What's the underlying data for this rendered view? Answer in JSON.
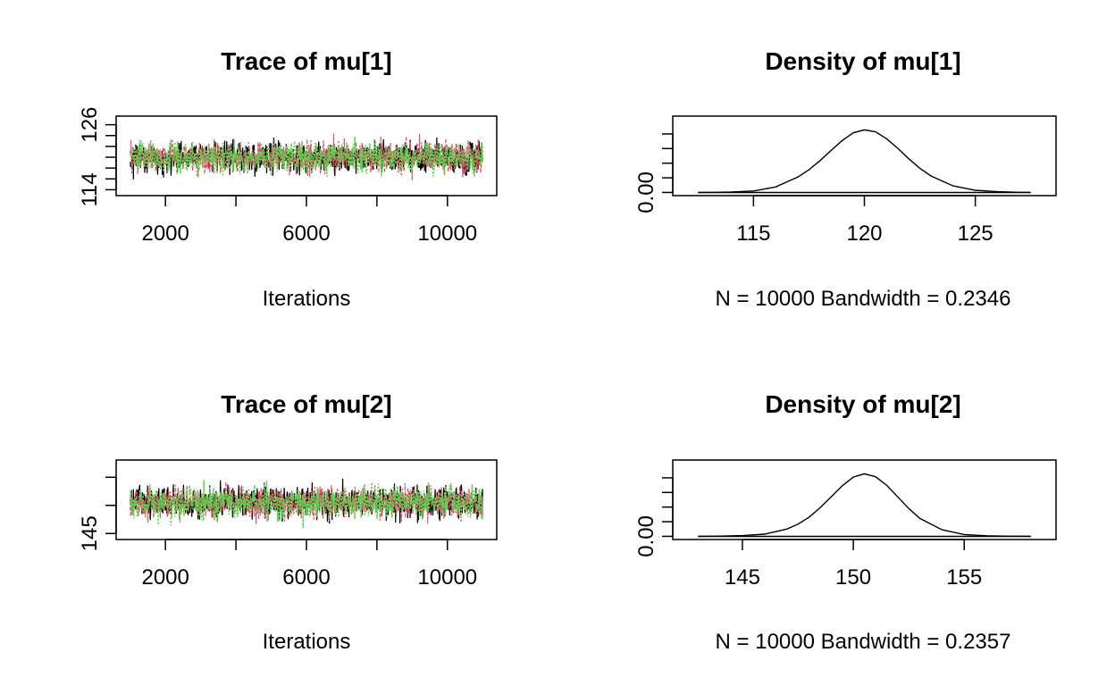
{
  "colors": {
    "chain1": "#000000",
    "chain2": "#DF536B",
    "chain3": "#61D04F",
    "axis": "#000000"
  },
  "chart_data": [
    {
      "type": "line",
      "title": "Trace of mu[1]",
      "xlabel": "Iterations",
      "ylabel": "",
      "xlim": [
        1001,
        11000
      ],
      "ylim": [
        113.5,
        127
      ],
      "x_ticks": [
        2000,
        4000,
        6000,
        8000,
        10000
      ],
      "x_tick_labels": [
        "2000",
        "",
        "6000",
        "",
        "10000"
      ],
      "y_ticks": [
        114,
        116,
        118,
        120,
        122,
        124,
        126
      ],
      "y_tick_labels": [
        "114",
        "",
        "",
        "",
        "",
        "",
        "126"
      ],
      "series": [
        {
          "color": "#000000",
          "center": 120.0,
          "spread": 4.5,
          "values_summary": "iterations 1001-11000"
        },
        {
          "color": "#DF536B",
          "center": 120.0,
          "spread": 4.5,
          "values_summary": "iterations 1001-11000"
        },
        {
          "color": "#61D04F",
          "center": 120.0,
          "spread": 4.5,
          "values_summary": "iterations 1001-11000"
        }
      ]
    },
    {
      "type": "line",
      "title": "Density of mu[1]",
      "xlabel": "N = 10000   Bandwidth = 0.2346",
      "ylabel": "",
      "xlim": [
        112,
        128
      ],
      "ylim": [
        0,
        0.2
      ],
      "x_ticks": [
        115,
        120,
        125
      ],
      "x_tick_labels": [
        "115",
        "120",
        "125"
      ],
      "y_ticks": [
        0,
        0.04,
        0.08,
        0.12,
        0.16
      ],
      "y_tick_labels": [
        "0.00",
        "",
        "",
        "",
        ""
      ],
      "series": [
        {
          "color": "#000000",
          "x": [
            112.5,
            113,
            114,
            115,
            116,
            117,
            117.5,
            118,
            118.5,
            119,
            119.5,
            120,
            120.5,
            121,
            121.5,
            122,
            122.5,
            123,
            124,
            125,
            126,
            127,
            127.5
          ],
          "y": [
            0.0,
            0.0002,
            0.001,
            0.004,
            0.015,
            0.042,
            0.062,
            0.087,
            0.115,
            0.142,
            0.163,
            0.171,
            0.166,
            0.147,
            0.121,
            0.092,
            0.066,
            0.045,
            0.018,
            0.006,
            0.002,
            0.0004,
            0.0
          ]
        }
      ]
    },
    {
      "type": "line",
      "title": "Trace of mu[2]",
      "xlabel": "Iterations",
      "ylabel": "",
      "xlim": [
        1001,
        11000
      ],
      "ylim": [
        144.5,
        157.5
      ],
      "x_ticks": [
        2000,
        4000,
        6000,
        8000,
        10000
      ],
      "x_tick_labels": [
        "2000",
        "",
        "6000",
        "",
        "10000"
      ],
      "y_ticks": [
        145,
        150,
        155
      ],
      "y_tick_labels": [
        "145",
        "",
        ""
      ],
      "series": [
        {
          "color": "#000000",
          "center": 150.5,
          "spread": 4.5,
          "values_summary": "iterations 1001-11000"
        },
        {
          "color": "#DF536B",
          "center": 150.5,
          "spread": 4.5,
          "values_summary": "iterations 1001-11000"
        },
        {
          "color": "#61D04F",
          "center": 150.5,
          "spread": 4.5,
          "values_summary": "iterations 1001-11000"
        }
      ]
    },
    {
      "type": "line",
      "title": "Density of mu[2]",
      "xlabel": "N = 10000   Bandwidth = 0.2357",
      "ylabel": "",
      "xlim": [
        142.5,
        158.5
      ],
      "ylim": [
        0,
        0.2
      ],
      "x_ticks": [
        145,
        150,
        155
      ],
      "x_tick_labels": [
        "145",
        "150",
        "155"
      ],
      "y_ticks": [
        0,
        0.04,
        0.08,
        0.12,
        0.16
      ],
      "y_tick_labels": [
        "0.00",
        "",
        "",
        "",
        ""
      ],
      "series": [
        {
          "color": "#000000",
          "x": [
            143,
            144,
            145,
            146,
            147,
            147.5,
            148,
            148.5,
            149,
            149.5,
            150,
            150.5,
            151,
            151.5,
            152,
            152.5,
            153,
            154,
            155,
            156,
            157,
            158
          ],
          "y": [
            0.0,
            0.0005,
            0.002,
            0.006,
            0.02,
            0.033,
            0.052,
            0.078,
            0.108,
            0.138,
            0.162,
            0.171,
            0.163,
            0.14,
            0.108,
            0.076,
            0.049,
            0.018,
            0.005,
            0.0015,
            0.0003,
            0.0
          ]
        }
      ]
    }
  ]
}
